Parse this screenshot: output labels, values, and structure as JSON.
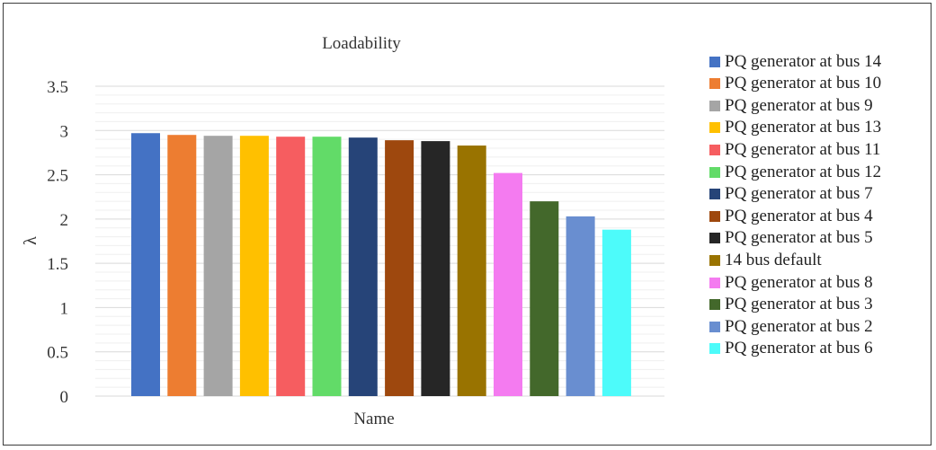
{
  "chart_data": {
    "type": "bar",
    "title": "Loadability",
    "xlabel": "Name",
    "ylabel": "λ",
    "ylim": [
      0,
      3.5
    ],
    "yticks": [
      "0",
      "0.5",
      "1",
      "1.5",
      "2",
      "2.5",
      "3",
      "3.5"
    ],
    "grid": true,
    "legend_position": "right",
    "series": [
      {
        "name": "PQ generator at bus 14",
        "value": 2.97,
        "color": "#4472C4"
      },
      {
        "name": "PQ generator at bus 10",
        "value": 2.95,
        "color": "#ED7D31"
      },
      {
        "name": "PQ generator at bus 9",
        "value": 2.94,
        "color": "#A5A5A5"
      },
      {
        "name": "PQ generator at bus 13",
        "value": 2.94,
        "color": "#FFC000"
      },
      {
        "name": "PQ generator at bus 11",
        "value": 2.93,
        "color": "#F65D60"
      },
      {
        "name": "PQ generator at bus 12",
        "value": 2.93,
        "color": "#62DB68"
      },
      {
        "name": "PQ generator at bus 7",
        "value": 2.92,
        "color": "#264478"
      },
      {
        "name": "PQ generator at bus 4",
        "value": 2.89,
        "color": "#9E480E"
      },
      {
        "name": "PQ generator at bus 5",
        "value": 2.88,
        "color": "#262626"
      },
      {
        "name": "14 bus default",
        "value": 2.83,
        "color": "#997300"
      },
      {
        "name": "PQ generator at bus 8",
        "value": 2.52,
        "color": "#F47BF0"
      },
      {
        "name": "PQ generator at bus 3",
        "value": 2.2,
        "color": "#43682B"
      },
      {
        "name": "PQ generator at bus 2",
        "value": 2.03,
        "color": "#698ED0"
      },
      {
        "name": "PQ generator at bus 6",
        "value": 1.88,
        "color": "#4DFBFA"
      }
    ]
  }
}
